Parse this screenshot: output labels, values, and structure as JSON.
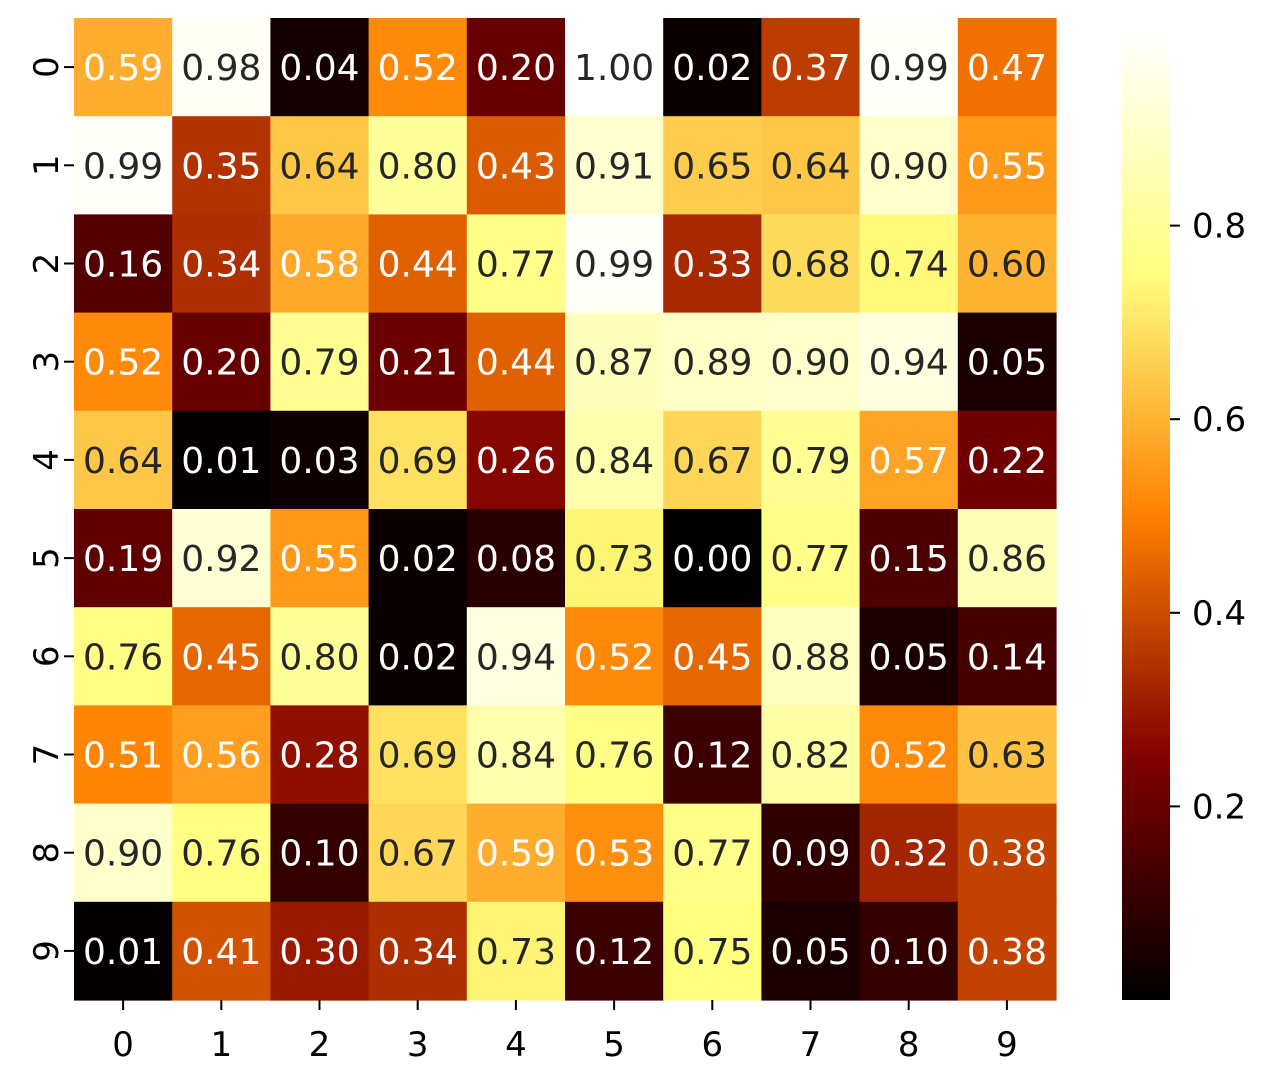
{
  "chart_data": {
    "type": "heatmap",
    "title": "",
    "xlabel": "",
    "ylabel": "",
    "x_categories": [
      "0",
      "1",
      "2",
      "3",
      "4",
      "5",
      "6",
      "7",
      "8",
      "9"
    ],
    "y_categories": [
      "0",
      "1",
      "2",
      "3",
      "4",
      "5",
      "6",
      "7",
      "8",
      "9"
    ],
    "values": [
      [
        0.59,
        0.98,
        0.04,
        0.52,
        0.2,
        1.0,
        0.02,
        0.37,
        0.99,
        0.47
      ],
      [
        0.99,
        0.35,
        0.64,
        0.8,
        0.43,
        0.91,
        0.65,
        0.64,
        0.9,
        0.55
      ],
      [
        0.16,
        0.34,
        0.58,
        0.44,
        0.77,
        0.99,
        0.33,
        0.68,
        0.74,
        0.6
      ],
      [
        0.52,
        0.2,
        0.79,
        0.21,
        0.44,
        0.87,
        0.89,
        0.9,
        0.94,
        0.05
      ],
      [
        0.64,
        0.01,
        0.03,
        0.69,
        0.26,
        0.84,
        0.67,
        0.79,
        0.57,
        0.22
      ],
      [
        0.19,
        0.92,
        0.55,
        0.02,
        0.08,
        0.73,
        0.0,
        0.77,
        0.15,
        0.86
      ],
      [
        0.76,
        0.45,
        0.8,
        0.02,
        0.94,
        0.52,
        0.45,
        0.88,
        0.05,
        0.14
      ],
      [
        0.51,
        0.56,
        0.28,
        0.69,
        0.84,
        0.76,
        0.12,
        0.82,
        0.52,
        0.63
      ],
      [
        0.9,
        0.76,
        0.1,
        0.67,
        0.59,
        0.53,
        0.77,
        0.09,
        0.32,
        0.38
      ],
      [
        0.01,
        0.41,
        0.3,
        0.34,
        0.73,
        0.12,
        0.75,
        0.05,
        0.1,
        0.38
      ]
    ],
    "value_format": "2 decimals",
    "colormap": "afmhot",
    "colorbar": {
      "vmin": 0.0,
      "vmax": 1.0,
      "ticks": [
        0.2,
        0.4,
        0.6,
        0.8
      ],
      "tick_labels": [
        "0.2",
        "0.4",
        "0.6",
        "0.8"
      ],
      "placement": "right"
    },
    "grid": false
  }
}
